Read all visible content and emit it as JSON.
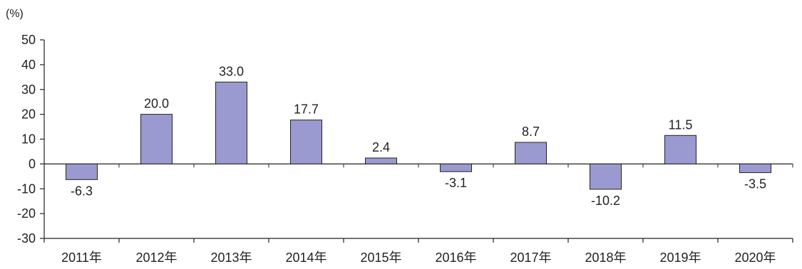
{
  "chart_data": {
    "type": "bar",
    "unit": "(%)",
    "categories": [
      "2011年",
      "2012年",
      "2013年",
      "2014年",
      "2015年",
      "2016年",
      "2017年",
      "2018年",
      "2019年",
      "2020年"
    ],
    "values": [
      -6.3,
      20.0,
      33.0,
      17.7,
      2.4,
      -3.1,
      8.7,
      -10.2,
      11.5,
      -3.5
    ],
    "value_labels": [
      "-6.3",
      "20.0",
      "33.0",
      "17.7",
      "2.4",
      "-3.1",
      "8.7",
      "-10.2",
      "11.5",
      "-3.5"
    ],
    "y_ticks": [
      50,
      40,
      30,
      20,
      10,
      0,
      -10,
      -20,
      -30
    ],
    "y_tick_labels": [
      "50",
      "40",
      "30",
      "20",
      "10",
      "0",
      "-10",
      "-20",
      "-30"
    ],
    "ylim": [
      -30,
      50
    ],
    "grid": false,
    "bar_color": "#9a9ad0",
    "bar_edge_color": "#222222"
  }
}
